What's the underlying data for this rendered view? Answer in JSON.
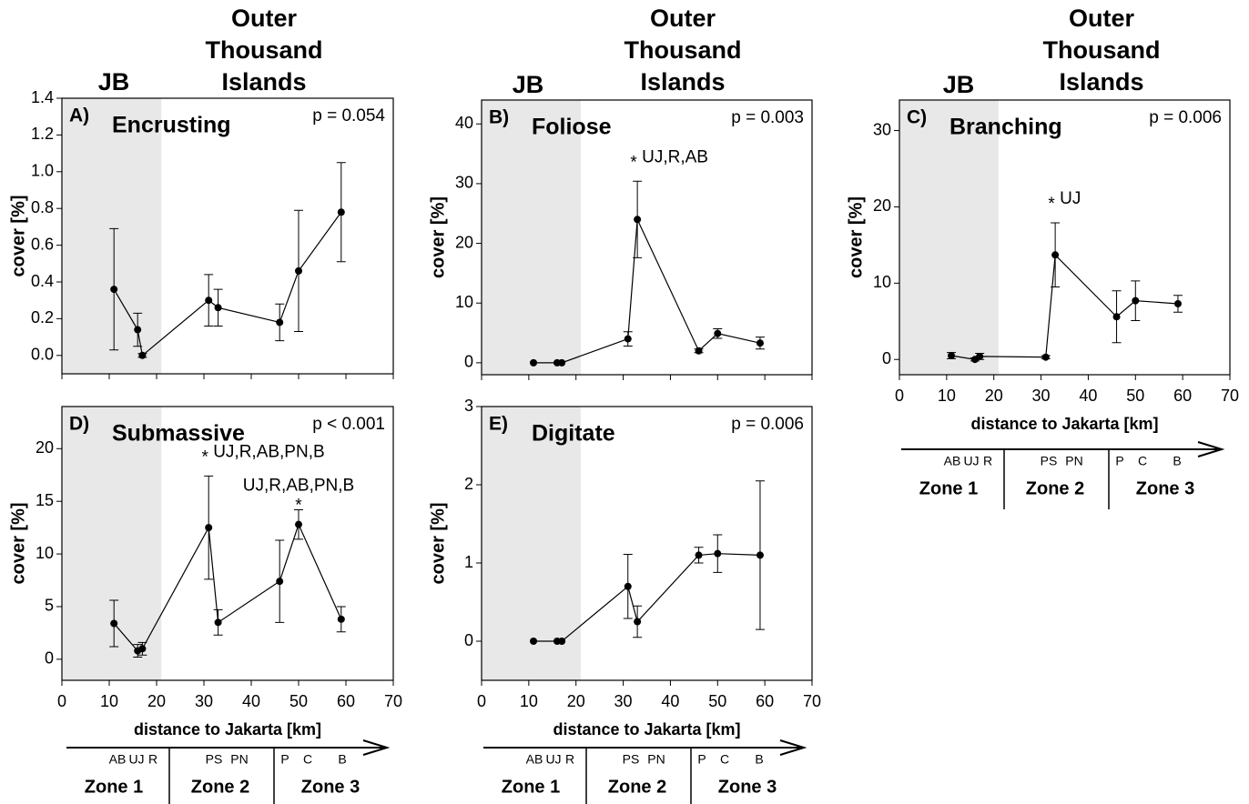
{
  "headers": {
    "left": "JB",
    "right": [
      "Outer",
      "Thousand",
      "Islands"
    ]
  },
  "zones": [
    {
      "name": "Zone 1",
      "sites": [
        "AB",
        "UJ",
        "R"
      ]
    },
    {
      "name": "Zone 2",
      "sites": [
        "PS",
        "PN"
      ]
    },
    {
      "name": "Zone 3",
      "sites": [
        "P",
        "C",
        "B"
      ]
    }
  ],
  "chart_data": [
    {
      "type": "line",
      "panel": "A)",
      "title": "Encrusting",
      "p_value": "p = 0.054",
      "ylabel": "cover [%]",
      "color": "#000000",
      "x": [
        11,
        16,
        17,
        31,
        33,
        46,
        50,
        59
      ],
      "values": [
        0.36,
        0.14,
        0.0,
        0.3,
        0.26,
        0.18,
        0.46,
        0.78
      ],
      "errors": [
        0.33,
        0.09,
        0.01,
        0.14,
        0.1,
        0.1,
        0.33,
        0.27
      ],
      "xlim": [
        0,
        70
      ],
      "xticks": [
        0,
        10,
        20,
        30,
        40,
        50,
        60,
        70
      ],
      "xtick_labels": false,
      "ylim": [
        -0.1,
        1.4
      ],
      "yticks": [
        {
          "value": 0,
          "label": "0.0"
        },
        0.2,
        0.4,
        0.6,
        0.8,
        {
          "value": 1,
          "label": "1.0"
        },
        1.2,
        1.4
      ],
      "shaded_xrange": [
        0,
        21
      ],
      "annotations": []
    },
    {
      "type": "line",
      "panel": "B)",
      "title": "Foliose",
      "p_value": "p = 0.003",
      "ylabel": "cover [%]",
      "color": "#000000",
      "x": [
        11,
        16,
        17,
        31,
        33,
        46,
        50,
        59
      ],
      "values": [
        0,
        0,
        0,
        4.0,
        24.0,
        2.0,
        4.9,
        3.3
      ],
      "errors": [
        0,
        0,
        0,
        1.2,
        6.4,
        0.3,
        0.8,
        1.0
      ],
      "xlim": [
        0,
        70
      ],
      "xticks": [
        0,
        10,
        20,
        30,
        40,
        50,
        60,
        70
      ],
      "xtick_labels": false,
      "ylim": [
        -2,
        44
      ],
      "yticks": [
        0,
        10,
        20,
        30,
        40
      ],
      "shaded_xrange": [
        0,
        21
      ],
      "annotations": [
        {
          "point": 4,
          "marker": "*",
          "text": "UJ,R,AB"
        }
      ]
    },
    {
      "type": "line",
      "panel": "C)",
      "title": "Branching",
      "p_value": "p = 0.006",
      "ylabel": "cover [%]",
      "xlabel": "distance to Jakarta [km]",
      "color": "#000000",
      "x": [
        11,
        16,
        17,
        31,
        33,
        46,
        50,
        59
      ],
      "values": [
        0.5,
        0.0,
        0.4,
        0.3,
        13.7,
        5.6,
        7.7,
        7.3
      ],
      "errors": [
        0.4,
        0.2,
        0.4,
        0.2,
        4.2,
        3.4,
        2.6,
        1.1
      ],
      "xlim": [
        0,
        70
      ],
      "xticks": [
        0,
        10,
        20,
        30,
        40,
        50,
        60,
        70
      ],
      "xtick_labels": true,
      "ylim": [
        -2,
        34
      ],
      "yticks": [
        0,
        10,
        20,
        30
      ],
      "shaded_xrange": [
        0,
        21
      ],
      "annotations": [
        {
          "point": 4,
          "marker": "*",
          "text": "UJ"
        }
      ]
    },
    {
      "type": "line",
      "panel": "D)",
      "title": "Submassive",
      "p_value": "p < 0.001",
      "ylabel": "cover [%]",
      "xlabel": "distance to Jakarta [km]",
      "color": "#000000",
      "x": [
        11,
        16,
        17,
        31,
        33,
        46,
        50,
        59
      ],
      "values": [
        3.4,
        0.8,
        1.0,
        12.5,
        3.5,
        7.4,
        12.8,
        3.8
      ],
      "errors": [
        2.2,
        0.6,
        0.6,
        4.9,
        1.2,
        3.9,
        1.4,
        1.2
      ],
      "xlim": [
        0,
        70
      ],
      "xticks": [
        0,
        10,
        20,
        30,
        40,
        50,
        60,
        70
      ],
      "xtick_labels": true,
      "ylim": [
        -2,
        24
      ],
      "yticks": [
        0,
        5,
        10,
        15,
        20
      ],
      "shaded_xrange": [
        0,
        21
      ],
      "annotations": [
        {
          "point": 3,
          "marker": "*",
          "text": "UJ,R,AB,PN,B"
        },
        {
          "point": 6,
          "marker": "*",
          "text": "UJ,R,AB,PN,B"
        }
      ]
    },
    {
      "type": "line",
      "panel": "E)",
      "title": "Digitate",
      "p_value": "p = 0.006",
      "ylabel": "cover [%]",
      "xlabel": "distance to Jakarta [km]",
      "color": "#000000",
      "x": [
        11,
        16,
        17,
        31,
        33,
        46,
        50,
        59
      ],
      "values": [
        0,
        0,
        0,
        0.7,
        0.25,
        1.1,
        1.12,
        1.1
      ],
      "errors": [
        0,
        0,
        0,
        0.41,
        0.2,
        0.1,
        0.24,
        0.95
      ],
      "xlim": [
        0,
        70
      ],
      "xticks": [
        0,
        10,
        20,
        30,
        40,
        50,
        60,
        70
      ],
      "xtick_labels": true,
      "ylim": [
        -0.5,
        3
      ],
      "yticks": [
        0,
        1,
        2,
        3
      ],
      "shaded_xrange": [
        0,
        21
      ],
      "annotations": []
    }
  ]
}
